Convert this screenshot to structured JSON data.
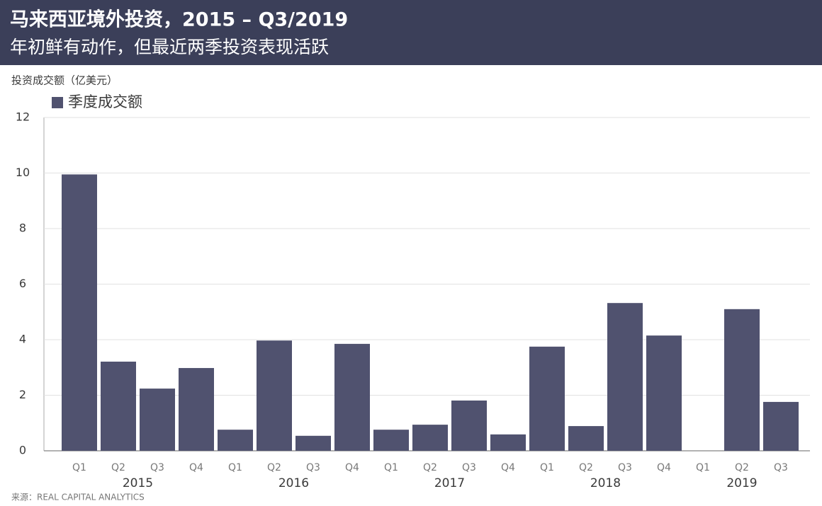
{
  "chart_data": {
    "type": "bar",
    "title": "马来西亚境外投资，2015 – Q3/2019",
    "subtitle": "年初鲜有动作，但最近两季投资表现活跃",
    "y_axis_label": "投资成交额（亿美元）",
    "source": "来源：REAL CAPITAL ANALYTICS",
    "categories": [
      "Q1",
      "Q2",
      "Q3",
      "Q4",
      "Q1",
      "Q2",
      "Q3",
      "Q4",
      "Q1",
      "Q2",
      "Q3",
      "Q4",
      "Q1",
      "Q2",
      "Q3",
      "Q4",
      "Q1",
      "Q2",
      "Q3"
    ],
    "x_groups": [
      "2015",
      "2016",
      "2017",
      "2018",
      "2019"
    ],
    "series": [
      {
        "name": "季度成交额",
        "color": "#50526f",
        "values": [
          9.95,
          3.21,
          2.24,
          2.98,
          0.76,
          3.97,
          0.54,
          3.85,
          0.76,
          0.94,
          1.81,
          0.59,
          3.75,
          0.89,
          5.32,
          4.15,
          0,
          5.1,
          1.76
        ]
      }
    ],
    "ylim": [
      0,
      12
    ],
    "yticks": [
      0,
      2,
      4,
      6,
      8,
      10,
      12
    ],
    "grid": true
  }
}
